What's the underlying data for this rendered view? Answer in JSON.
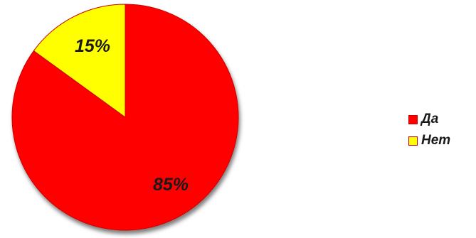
{
  "chart_data": {
    "type": "pie",
    "title": "",
    "slices": [
      {
        "label": "Да",
        "value": 85,
        "display": "85%",
        "color": "#ff0000",
        "border": "#cc0000"
      },
      {
        "label": "Нет",
        "value": 15,
        "display": "15%",
        "color": "#ffff00",
        "border": "#cc0000"
      }
    ],
    "start_angle_deg": 0,
    "direction": "clockwise",
    "legend_position": "right"
  }
}
